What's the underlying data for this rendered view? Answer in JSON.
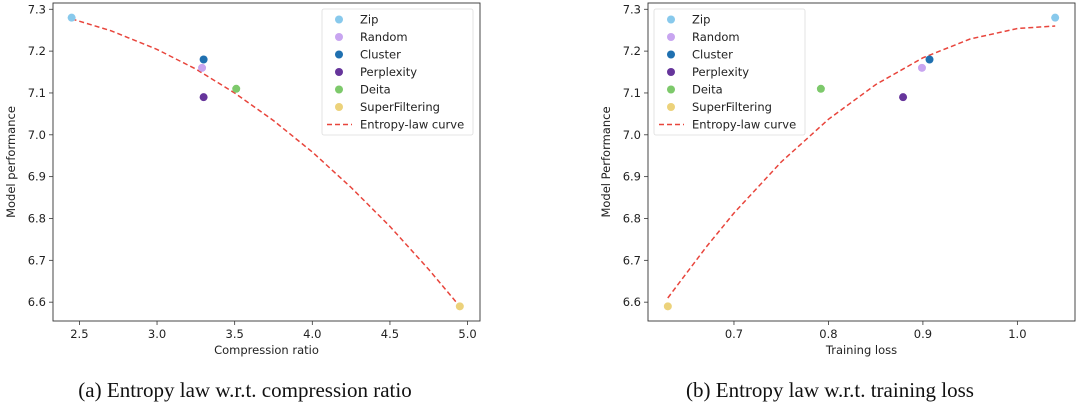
{
  "chart_data": [
    {
      "type": "scatter",
      "caption": "(a) Entropy law w.r.t. compression ratio",
      "xlabel": "Compression ratio",
      "ylabel": "Model performance",
      "xlim": [
        2.33,
        5.08
      ],
      "ylim": [
        6.555,
        7.315
      ],
      "xticks": [
        "2.5",
        "3.0",
        "3.5",
        "4.0",
        "4.5",
        "5.0"
      ],
      "yticks": [
        "6.6",
        "6.7",
        "6.8",
        "6.9",
        "7.0",
        "7.1",
        "7.2",
        "7.3"
      ],
      "grid": false,
      "legend_position": "top-right",
      "series": [
        {
          "name": "Zip",
          "color": "#88c9ec",
          "x": [
            2.45
          ],
          "y": [
            7.28
          ]
        },
        {
          "name": "Random",
          "color": "#c8a5f0",
          "x": [
            3.29
          ],
          "y": [
            7.16
          ]
        },
        {
          "name": "Cluster",
          "color": "#1f70b0",
          "x": [
            3.3
          ],
          "y": [
            7.18
          ]
        },
        {
          "name": "Perplexity",
          "color": "#66359b",
          "x": [
            3.3
          ],
          "y": [
            7.09
          ]
        },
        {
          "name": "Deita",
          "color": "#7dc96b",
          "x": [
            3.51
          ],
          "y": [
            7.11
          ]
        },
        {
          "name": "SuperFiltering",
          "color": "#ecd27b",
          "x": [
            4.95
          ],
          "y": [
            6.59
          ]
        }
      ],
      "curve": {
        "name": "Entropy-law curve",
        "color": "#e8453c",
        "x": [
          2.45,
          2.7,
          3.0,
          3.25,
          3.5,
          3.75,
          4.0,
          4.25,
          4.5,
          4.75,
          4.95
        ],
        "y": [
          7.277,
          7.249,
          7.204,
          7.157,
          7.1,
          7.034,
          6.959,
          6.874,
          6.781,
          6.678,
          6.59
        ]
      }
    },
    {
      "type": "scatter",
      "caption": "(b) Entropy law w.r.t. training loss",
      "xlabel": "Training loss",
      "ylabel": "Model Performance",
      "xlim": [
        0.609,
        1.061
      ],
      "ylim": [
        6.555,
        7.315
      ],
      "xticks": [
        "0.7",
        "0.8",
        "0.9",
        "1.0"
      ],
      "yticks": [
        "6.6",
        "6.7",
        "6.8",
        "6.9",
        "7.0",
        "7.1",
        "7.2",
        "7.3"
      ],
      "grid": false,
      "legend_position": "top-left",
      "series": [
        {
          "name": "Zip",
          "color": "#88c9ec",
          "x": [
            1.04
          ],
          "y": [
            7.28
          ]
        },
        {
          "name": "Random",
          "color": "#c8a5f0",
          "x": [
            0.899
          ],
          "y": [
            7.16
          ]
        },
        {
          "name": "Cluster",
          "color": "#1f70b0",
          "x": [
            0.907
          ],
          "y": [
            7.18
          ]
        },
        {
          "name": "Perplexity",
          "color": "#66359b",
          "x": [
            0.879
          ],
          "y": [
            7.09
          ]
        },
        {
          "name": "Deita",
          "color": "#7dc96b",
          "x": [
            0.792
          ],
          "y": [
            7.11
          ]
        },
        {
          "name": "SuperFiltering",
          "color": "#ecd27b",
          "x": [
            0.63
          ],
          "y": [
            6.59
          ]
        }
      ],
      "curve": {
        "name": "Entropy-law curve",
        "color": "#e8453c",
        "x": [
          0.63,
          0.67,
          0.7,
          0.75,
          0.8,
          0.85,
          0.9,
          0.95,
          1.0,
          1.04
        ],
        "y": [
          6.61,
          6.73,
          6.813,
          6.935,
          7.037,
          7.12,
          7.184,
          7.229,
          7.254,
          7.26
        ]
      }
    }
  ]
}
